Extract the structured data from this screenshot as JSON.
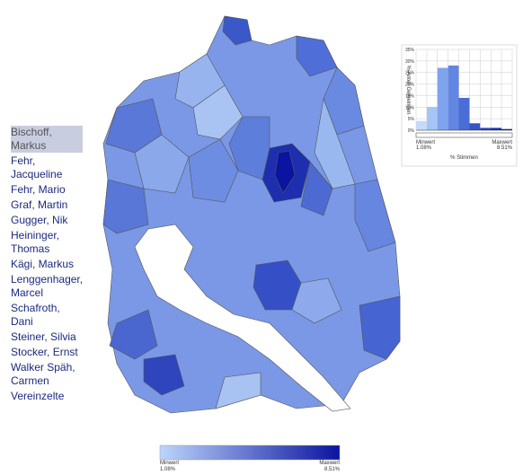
{
  "candidates": [
    "Bischoff, Markus",
    "Fehr, Jacqueline",
    "Fehr, Mario",
    "Graf, Martin",
    "Gugger, Nik",
    "Heininger, Thomas",
    "Kägi, Markus",
    "Lenggenhager, Marcel",
    "Schafroth, Dani",
    "Steiner, Silvia",
    "Stocker, Ernst",
    "Walker Späh, Carmen",
    "Vereinzelte"
  ],
  "selected": 0,
  "chart_data": {
    "type": "histogram",
    "ylabel": "%-Anteil Gemeinden",
    "xlabel": "% Stimmen",
    "bins": [
      1.08,
      1.91,
      2.73,
      3.56,
      4.38,
      5.21,
      6.03,
      6.86,
      7.68,
      8.51
    ],
    "values": [
      4,
      10,
      27,
      28,
      14,
      3,
      1,
      1,
      0.5
    ],
    "colors": [
      "#c6dbfb",
      "#a6c4f4",
      "#7fa3ec",
      "#6286e2",
      "#4a6dd6",
      "#3755c8",
      "#2641b8",
      "#1730a8",
      "#0a1f98"
    ],
    "xlim": [
      1.08,
      8.51
    ],
    "ylim": [
      0,
      35
    ],
    "yticks": [
      {
        "value": 0,
        "label": "0%"
      },
      {
        "value": 5,
        "label": "5%"
      },
      {
        "value": 10,
        "label": "10%"
      },
      {
        "value": 15,
        "label": "15%"
      },
      {
        "value": 20,
        "label": "20%"
      },
      {
        "value": 25,
        "label": "25%"
      },
      {
        "value": 30,
        "label": "30%"
      },
      {
        "value": 35,
        "label": "35%"
      }
    ],
    "grid": true,
    "min_text": "Minwert",
    "min_value": "1.08%",
    "max_text": "Maxwert",
    "max_value": "8.51%"
  },
  "legend": {
    "min_text": "Minwert",
    "min_value": "1.08%",
    "max_text": "Maxwert",
    "max_value": "8.51%",
    "color_low": "#bcd5fb",
    "color_high": "#0a14a0"
  }
}
